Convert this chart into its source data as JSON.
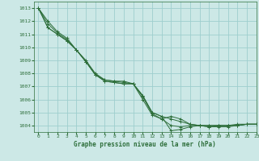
{
  "title": "Graphe pression niveau de la mer (hPa)",
  "xlim": [
    -0.5,
    23
  ],
  "ylim": [
    1003.5,
    1013.5
  ],
  "yticks": [
    1004,
    1005,
    1006,
    1007,
    1008,
    1009,
    1010,
    1011,
    1012,
    1013
  ],
  "xticks": [
    0,
    1,
    2,
    3,
    4,
    5,
    6,
    7,
    8,
    9,
    10,
    11,
    12,
    13,
    14,
    15,
    16,
    17,
    18,
    19,
    20,
    21,
    22,
    23
  ],
  "background_color": "#cce8e6",
  "grid_color": "#9ecece",
  "line_color": "#2d6e3a",
  "series": [
    [
      1013.0,
      1012.0,
      1011.2,
      1010.7,
      1009.8,
      1009.0,
      1008.0,
      1007.5,
      1007.4,
      1007.4,
      1007.2,
      1006.3,
      1005.0,
      1004.7,
      1003.6,
      1003.7,
      1003.9,
      1004.0,
      1003.9,
      1004.0,
      1004.0,
      1004.1,
      1004.1,
      1004.1
    ],
    [
      1013.0,
      1011.5,
      1011.0,
      1010.5,
      1009.8,
      1008.9,
      1007.9,
      1007.5,
      1007.4,
      1007.3,
      1007.2,
      1006.3,
      1005.0,
      1004.7,
      1004.5,
      1004.3,
      1004.1,
      1004.0,
      1003.9,
      1003.9,
      1003.9,
      1004.0,
      1004.1,
      1004.1
    ],
    [
      1013.0,
      1011.5,
      1011.0,
      1010.5,
      1009.8,
      1008.9,
      1007.9,
      1007.4,
      1007.3,
      1007.2,
      1007.2,
      1006.0,
      1004.8,
      1004.5,
      1004.7,
      1004.5,
      1004.1,
      1004.0,
      1004.0,
      1004.0,
      1004.0,
      1004.0,
      1004.1,
      1004.1
    ],
    [
      1013.0,
      1011.8,
      1011.1,
      1010.6,
      1009.8,
      1008.9,
      1007.9,
      1007.4,
      1007.3,
      1007.2,
      1007.2,
      1006.2,
      1004.9,
      1004.5,
      1004.0,
      1003.9,
      1004.0,
      1004.0,
      1004.0,
      1004.0,
      1004.0,
      1004.0,
      1004.1,
      1004.1
    ]
  ]
}
